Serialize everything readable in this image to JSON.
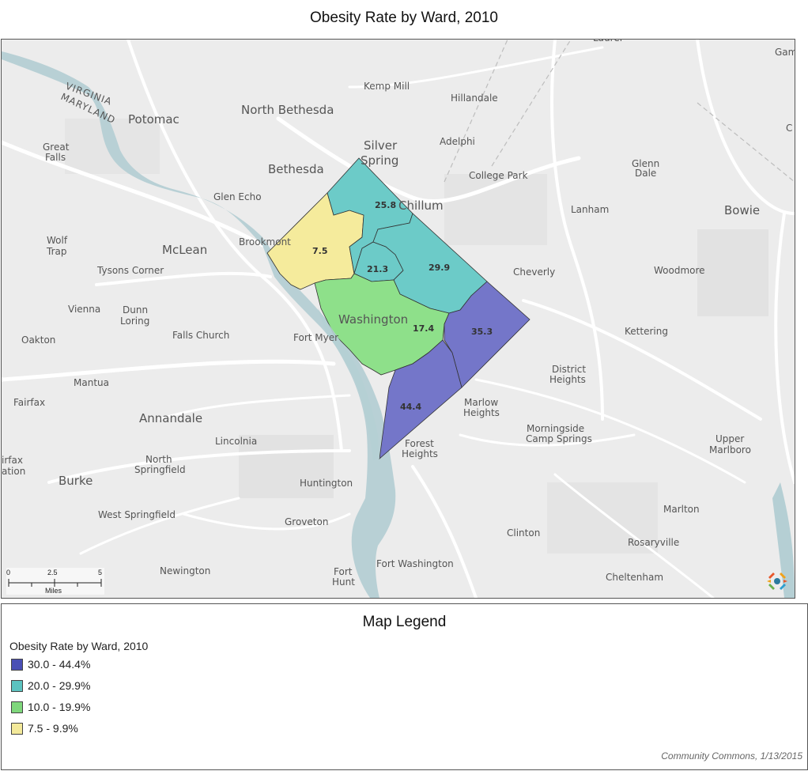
{
  "title": "Obesity Rate by Ward, 2010",
  "map": {
    "places": [
      {
        "name": "Kemp Mill"
      },
      {
        "name": "Hillandale"
      },
      {
        "name": "North Bethesda"
      },
      {
        "name": "Potomac"
      },
      {
        "name": "Silver"
      },
      {
        "name": "Spring"
      },
      {
        "name": "Adelphi"
      },
      {
        "name": "Great"
      },
      {
        "name": "Falls"
      },
      {
        "name": "Bethesda"
      },
      {
        "name": "College Park"
      },
      {
        "name": "Glenn"
      },
      {
        "name": "Dale"
      },
      {
        "name": "Glen Echo"
      },
      {
        "name": "Chillum"
      },
      {
        "name": "Lanham"
      },
      {
        "name": "Bowie"
      },
      {
        "name": "Wolf"
      },
      {
        "name": "Trap"
      },
      {
        "name": "Brookmont"
      },
      {
        "name": "McLean"
      },
      {
        "name": "Tysons Corner"
      },
      {
        "name": "Cheverly"
      },
      {
        "name": "Woodmore"
      },
      {
        "name": "Vienna"
      },
      {
        "name": "Dunn"
      },
      {
        "name": "Loring"
      },
      {
        "name": "Washington"
      },
      {
        "name": "Kettering"
      },
      {
        "name": "Oakton"
      },
      {
        "name": "Falls Church"
      },
      {
        "name": "Fort Myer"
      },
      {
        "name": "District"
      },
      {
        "name": "Heights"
      },
      {
        "name": "Mantua"
      },
      {
        "name": "Fairfax"
      },
      {
        "name": "Marlow"
      },
      {
        "name": "Heights"
      },
      {
        "name": "Annandale"
      },
      {
        "name": "Morningside"
      },
      {
        "name": "Camp Springs"
      },
      {
        "name": "Lincolnia"
      },
      {
        "name": "Forest"
      },
      {
        "name": "Heights"
      },
      {
        "name": "Upper"
      },
      {
        "name": "Marlboro"
      },
      {
        "name": "North"
      },
      {
        "name": "Springfield"
      },
      {
        "name": "irfax"
      },
      {
        "name": "ation"
      },
      {
        "name": "Burke"
      },
      {
        "name": "Huntington"
      },
      {
        "name": "West Springfield"
      },
      {
        "name": "Marlton"
      },
      {
        "name": "Groveton"
      },
      {
        "name": "Clinton"
      },
      {
        "name": "Rosaryville"
      },
      {
        "name": "Newington"
      },
      {
        "name": "Fort"
      },
      {
        "name": "Hunt"
      },
      {
        "name": "Fort Washington"
      },
      {
        "name": "Cheltenham"
      },
      {
        "name": "Laurel"
      },
      {
        "name": "Gam"
      },
      {
        "name": "C"
      },
      {
        "name": "VIRGINIA"
      },
      {
        "name": "MARYLAND"
      }
    ],
    "wards": [
      {
        "label": "25.8",
        "value": 25.8,
        "color": "#6ccbc8"
      },
      {
        "label": "7.5",
        "value": 7.5,
        "color": "#f5eb9c"
      },
      {
        "label": "21.3",
        "value": 21.3,
        "color": "#6ccbc8"
      },
      {
        "label": "29.9",
        "value": 29.9,
        "color": "#6ccbc8"
      },
      {
        "label": "17.4",
        "value": 17.4,
        "color": "#8ee08a"
      },
      {
        "label": "35.3",
        "value": 35.3,
        "color": "#7476c9"
      },
      {
        "label": "44.4",
        "value": 44.4,
        "color": "#7476c9"
      }
    ],
    "scale": {
      "ticks": [
        "0",
        "2.5",
        "5"
      ],
      "unit": "Miles"
    }
  },
  "legend": {
    "title": "Map Legend",
    "subtitle": "Obesity Rate by Ward, 2010",
    "items": [
      {
        "label": "30.0 - 44.4%",
        "color": "#4a4fb5"
      },
      {
        "label": "20.0 - 29.9%",
        "color": "#5cc3c0"
      },
      {
        "label": "10.0 - 19.9%",
        "color": "#7fd77c"
      },
      {
        "label": "7.5 - 9.9%",
        "color": "#f3e99a"
      }
    ],
    "credit": "Community Commons, 1/13/2015"
  }
}
